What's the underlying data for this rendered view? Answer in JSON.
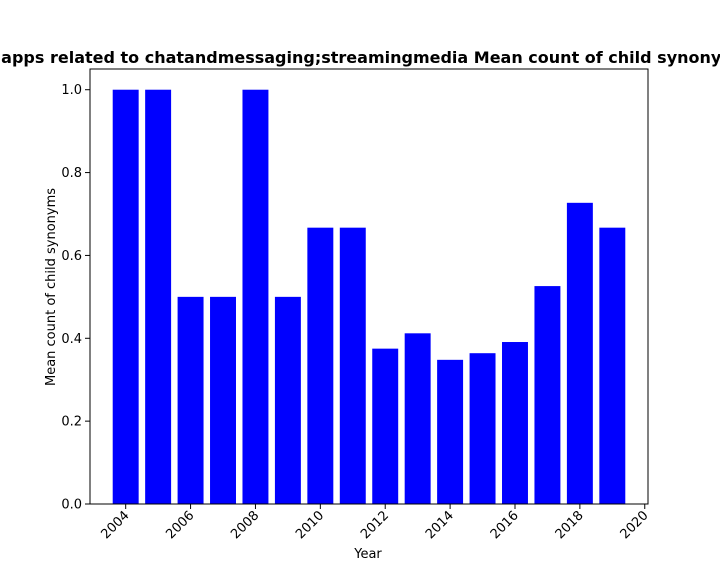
{
  "chart_data": {
    "type": "bar",
    "title": "Distribution of apps related to chatandmessaging;streamingmedia Mean count of child synonyms in each year",
    "xlabel": "Year",
    "ylabel": "Mean count of child synonyms",
    "x": [
      2004,
      2005,
      2006,
      2007,
      2008,
      2009,
      2010,
      2011,
      2012,
      2013,
      2014,
      2015,
      2016,
      2017,
      2018,
      2019
    ],
    "values": [
      1.0,
      1.0,
      0.5,
      0.5,
      1.0,
      0.5,
      0.667,
      0.667,
      0.375,
      0.412,
      0.348,
      0.364,
      0.391,
      0.526,
      0.727,
      0.667
    ],
    "xlim": [
      2002.9,
      2020.1
    ],
    "ylim": [
      0,
      1.05
    ],
    "xticks": [
      2004,
      2006,
      2008,
      2010,
      2012,
      2014,
      2016,
      2018,
      2020
    ],
    "yticks": [
      "0.0",
      "0.2",
      "0.4",
      "0.6",
      "0.8",
      "1.0"
    ],
    "bar_color": "#0000ff",
    "grid": false,
    "legend": "none"
  }
}
